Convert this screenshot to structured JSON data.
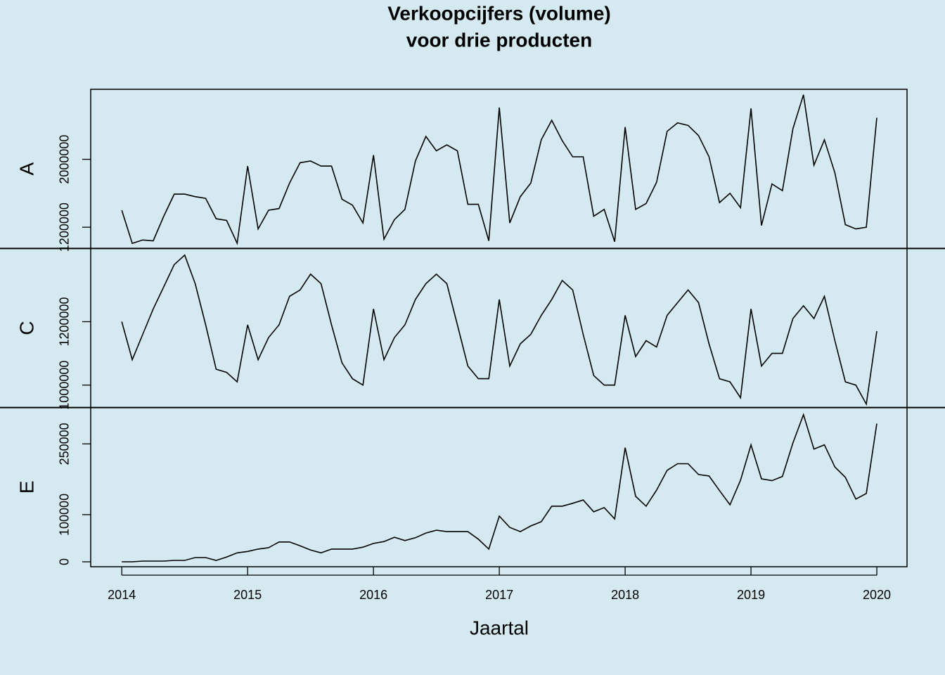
{
  "chart_data": {
    "type": "line",
    "title": [
      "Verkoopcijfers (volume)",
      "voor drie producten"
    ],
    "xlabel": "Jaartal",
    "x": [
      2014,
      2014.0833,
      2014.1667,
      2014.25,
      2014.3333,
      2014.4167,
      2014.5,
      2014.5833,
      2014.6667,
      2014.75,
      2014.8333,
      2014.9167,
      2015,
      2015.0833,
      2015.1667,
      2015.25,
      2015.3333,
      2015.4167,
      2015.5,
      2015.5833,
      2015.6667,
      2015.75,
      2015.8333,
      2015.9167,
      2016,
      2016.0833,
      2016.1667,
      2016.25,
      2016.3333,
      2016.4167,
      2016.5,
      2016.5833,
      2016.6667,
      2016.75,
      2016.8333,
      2016.9167,
      2017,
      2017.0833,
      2017.1667,
      2017.25,
      2017.3333,
      2017.4167,
      2017.5,
      2017.5833,
      2017.6667,
      2017.75,
      2017.8333,
      2017.9167,
      2018,
      2018.0833,
      2018.1667,
      2018.25,
      2018.3333,
      2018.4167,
      2018.5,
      2018.5833,
      2018.6667,
      2018.75,
      2018.8333,
      2018.9167,
      2019,
      2019.0833,
      2019.1667,
      2019.25,
      2019.3333,
      2019.4167,
      2019.5,
      2019.5833,
      2019.6667,
      2019.75,
      2019.8333,
      2019.9167,
      2020
    ],
    "xlim": [
      2013.753,
      2020.24
    ],
    "xticks": [
      2014,
      2015,
      2016,
      2017,
      2018,
      2019,
      2020
    ],
    "color": "#000000",
    "series": [
      {
        "name": "A",
        "ylim": [
          950000,
          2825000
        ],
        "yticks": [
          1200000,
          2000000
        ],
        "values": [
          1400000,
          1010000,
          1050000,
          1040000,
          1330000,
          1590000,
          1590000,
          1560000,
          1540000,
          1300000,
          1280000,
          1010000,
          1920000,
          1180000,
          1400000,
          1420000,
          1720000,
          1960000,
          1980000,
          1920000,
          1920000,
          1530000,
          1460000,
          1250000,
          2050000,
          1060000,
          1290000,
          1410000,
          1980000,
          2270000,
          2100000,
          2170000,
          2100000,
          1470000,
          1470000,
          1040000,
          2610000,
          1250000,
          1560000,
          1720000,
          2230000,
          2460000,
          2220000,
          2030000,
          2030000,
          1330000,
          1410000,
          1030000,
          2380000,
          1410000,
          1480000,
          1730000,
          2330000,
          2430000,
          2400000,
          2280000,
          2030000,
          1490000,
          1600000,
          1430000,
          2600000,
          1220000,
          1710000,
          1630000,
          2360000,
          2760000,
          1930000,
          2230000,
          1840000,
          1230000,
          1180000,
          1200000,
          2490000
        ]
      },
      {
        "name": "C",
        "ylim": [
          929000,
          1431000
        ],
        "yticks": [
          1000000,
          1200000
        ],
        "values": [
          1200000,
          1080000,
          1160000,
          1240000,
          1310000,
          1380000,
          1410000,
          1320000,
          1190000,
          1050000,
          1040000,
          1010000,
          1190000,
          1080000,
          1150000,
          1190000,
          1280000,
          1300000,
          1350000,
          1320000,
          1190000,
          1070000,
          1020000,
          1000000,
          1240000,
          1080000,
          1150000,
          1190000,
          1270000,
          1320000,
          1350000,
          1320000,
          1190000,
          1060000,
          1020000,
          1020000,
          1270000,
          1060000,
          1130000,
          1160000,
          1220000,
          1270000,
          1330000,
          1300000,
          1160000,
          1030000,
          1000000,
          1000000,
          1220000,
          1090000,
          1140000,
          1120000,
          1220000,
          1260000,
          1300000,
          1260000,
          1130000,
          1020000,
          1010000,
          960000,
          1240000,
          1060000,
          1100000,
          1100000,
          1210000,
          1250000,
          1210000,
          1280000,
          1140000,
          1010000,
          1000000,
          940000,
          1170000
        ]
      },
      {
        "name": "E",
        "ylim": [
          -10400,
          327000
        ],
        "yticks": [
          0,
          100000,
          250000
        ],
        "values": [
          0,
          0,
          1500,
          1500,
          1500,
          3000,
          3000,
          9000,
          9000,
          3000,
          10000,
          19000,
          22000,
          27000,
          30000,
          42000,
          42000,
          34000,
          25000,
          19000,
          27000,
          27000,
          27000,
          31000,
          39000,
          43000,
          52000,
          45000,
          51000,
          61000,
          67000,
          64000,
          64000,
          64000,
          48000,
          27000,
          97000,
          73000,
          64000,
          76000,
          85000,
          118000,
          118000,
          124000,
          131000,
          106000,
          115000,
          91000,
          242000,
          139000,
          118000,
          152000,
          194000,
          208000,
          208000,
          185000,
          182000,
          151000,
          121000,
          173000,
          248000,
          176000,
          172000,
          181000,
          252000,
          312000,
          239000,
          248000,
          201000,
          179000,
          133000,
          145000,
          293000
        ]
      }
    ]
  }
}
